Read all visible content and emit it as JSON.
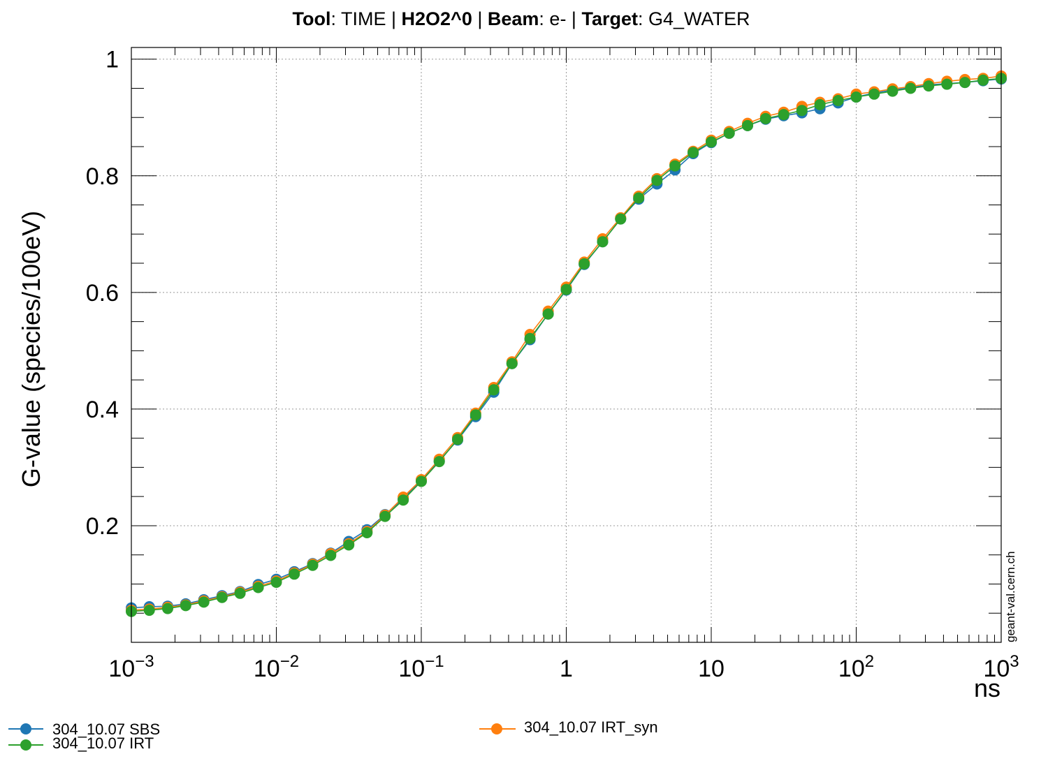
{
  "chart_data": {
    "type": "line",
    "title": {
      "tool_key": "Tool",
      "tool_val": ": TIME | ",
      "species": "H2O2^0",
      "sep": " | ",
      "beam_key": "Beam",
      "beam_val": ": e- | ",
      "target_key": "Target",
      "target_val": ": G4_WATER"
    },
    "xlabel": "ns",
    "ylabel": "G-value (species/100eV)",
    "xscale": "log",
    "xlim": [
      0.001,
      1000
    ],
    "ylim": [
      0.0,
      1.02
    ],
    "grid": true,
    "x_ticks": [
      {
        "value": 0.001,
        "base": "10",
        "exp": "−3"
      },
      {
        "value": 0.01,
        "base": "10",
        "exp": "−2"
      },
      {
        "value": 0.1,
        "base": "10",
        "exp": "−1"
      },
      {
        "value": 1,
        "base": "1",
        "exp": ""
      },
      {
        "value": 10,
        "base": "10",
        "exp": ""
      },
      {
        "value": 100,
        "base": "10",
        "exp": "2"
      },
      {
        "value": 1000,
        "base": "10",
        "exp": "3"
      }
    ],
    "y_ticks": [
      {
        "value": 0.2,
        "label": "0.2"
      },
      {
        "value": 0.4,
        "label": "0.4"
      },
      {
        "value": 0.6,
        "label": "0.6"
      },
      {
        "value": 0.8,
        "label": "0.8"
      },
      {
        "value": 1.0,
        "label": "1"
      }
    ],
    "x": [
      0.001,
      0.00133,
      0.00178,
      0.00237,
      0.00316,
      0.00422,
      0.00562,
      0.0075,
      0.01,
      0.0133,
      0.0178,
      0.0237,
      0.0316,
      0.0422,
      0.0562,
      0.075,
      0.1,
      0.133,
      0.178,
      0.237,
      0.316,
      0.422,
      0.562,
      0.75,
      1.0,
      1.33,
      1.78,
      2.37,
      3.16,
      4.22,
      5.62,
      7.5,
      10,
      13.3,
      17.8,
      23.7,
      31.6,
      42.2,
      56.2,
      75,
      100,
      133,
      178,
      237,
      316,
      422,
      562,
      750,
      1000
    ],
    "series": [
      {
        "name": "304_10.07 SBS",
        "color": "#1f77b4",
        "y": [
          0.059,
          0.061,
          0.062,
          0.066,
          0.073,
          0.08,
          0.087,
          0.099,
          0.108,
          0.121,
          0.135,
          0.153,
          0.173,
          0.193,
          0.219,
          0.246,
          0.278,
          0.311,
          0.347,
          0.387,
          0.429,
          0.478,
          0.519,
          0.563,
          0.604,
          0.648,
          0.687,
          0.726,
          0.76,
          0.786,
          0.81,
          0.838,
          0.857,
          0.873,
          0.886,
          0.897,
          0.903,
          0.908,
          0.915,
          0.925,
          0.935,
          0.942,
          0.947,
          0.951,
          0.956,
          0.958,
          0.96,
          0.963,
          0.966
        ]
      },
      {
        "name": "304_10.07 IRT_syn",
        "color": "#ff7f0e",
        "y": [
          0.055,
          0.057,
          0.06,
          0.064,
          0.071,
          0.078,
          0.086,
          0.096,
          0.105,
          0.119,
          0.134,
          0.152,
          0.169,
          0.19,
          0.218,
          0.249,
          0.279,
          0.314,
          0.351,
          0.393,
          0.437,
          0.481,
          0.528,
          0.568,
          0.609,
          0.652,
          0.692,
          0.728,
          0.765,
          0.795,
          0.82,
          0.842,
          0.861,
          0.876,
          0.89,
          0.902,
          0.909,
          0.919,
          0.926,
          0.932,
          0.94,
          0.944,
          0.949,
          0.953,
          0.958,
          0.962,
          0.965,
          0.967,
          0.971
        ]
      },
      {
        "name": "304_10.07 IRT",
        "color": "#2ca02c",
        "y": [
          0.053,
          0.055,
          0.058,
          0.063,
          0.069,
          0.077,
          0.084,
          0.094,
          0.103,
          0.117,
          0.132,
          0.149,
          0.167,
          0.188,
          0.216,
          0.244,
          0.276,
          0.31,
          0.348,
          0.39,
          0.433,
          0.478,
          0.521,
          0.563,
          0.605,
          0.649,
          0.687,
          0.726,
          0.762,
          0.792,
          0.817,
          0.84,
          0.858,
          0.873,
          0.886,
          0.898,
          0.905,
          0.912,
          0.922,
          0.929,
          0.935,
          0.94,
          0.945,
          0.95,
          0.954,
          0.957,
          0.96,
          0.964,
          0.967
        ]
      }
    ],
    "draw_order": [
      0,
      1,
      2
    ],
    "legend": {
      "placement": "below",
      "entries": [
        "304_10.07 SBS",
        "304_10.07 IRT",
        "304_10.07 IRT_syn"
      ]
    },
    "watermark": "geant-val.cern.ch"
  }
}
